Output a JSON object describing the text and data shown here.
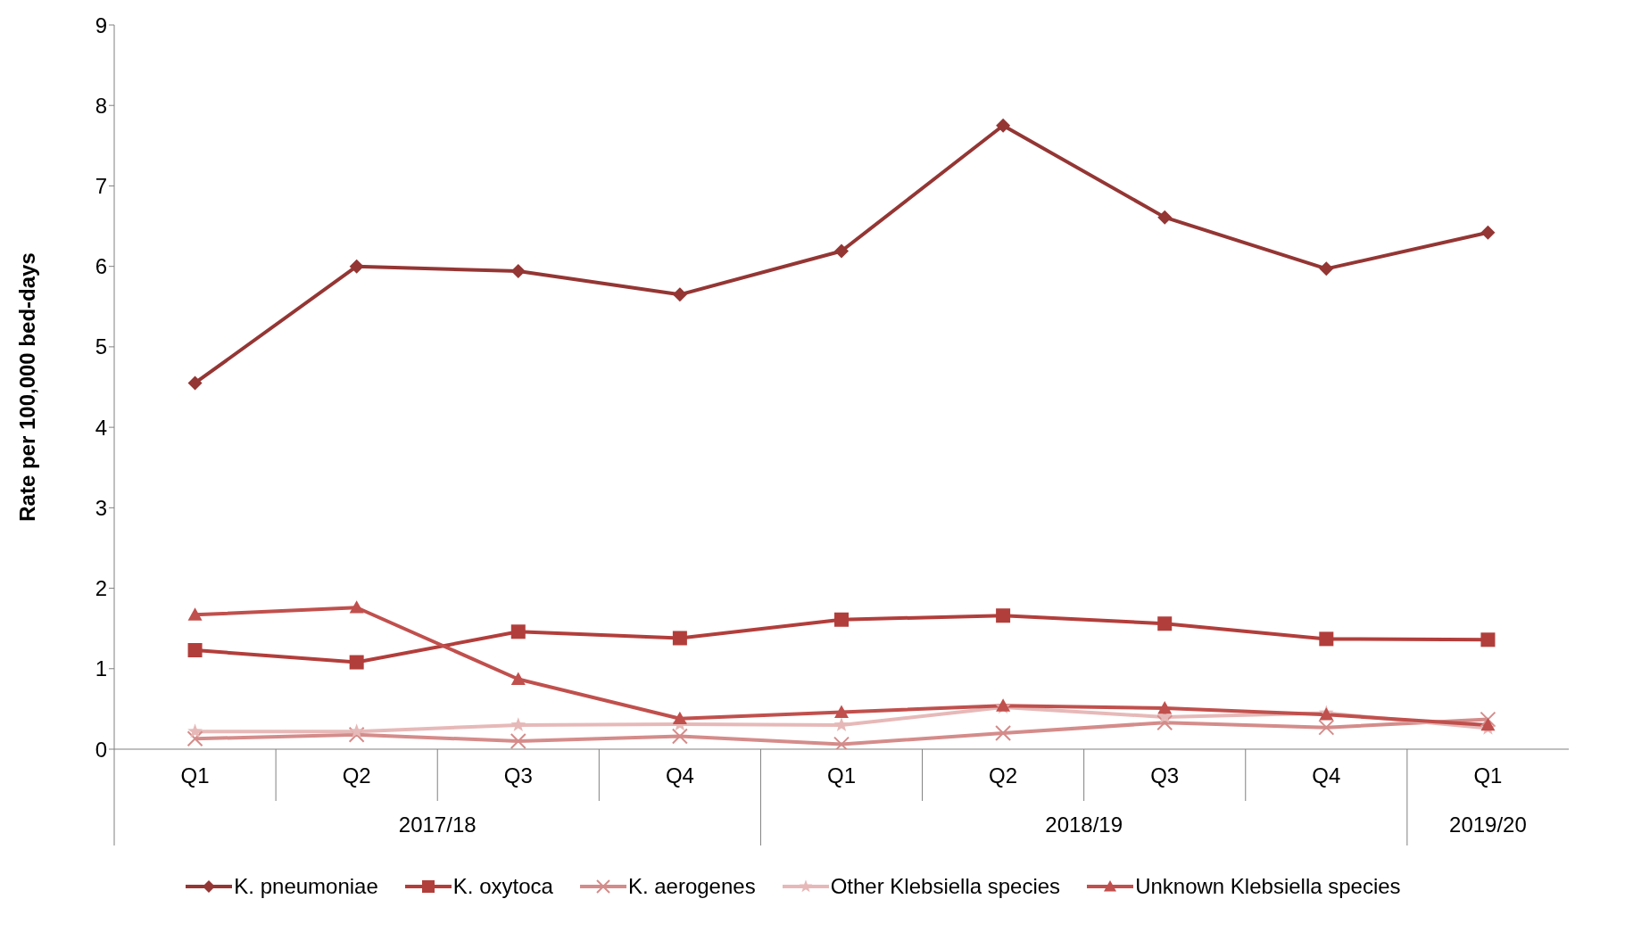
{
  "chart_data": {
    "type": "line",
    "ylabel": "Rate per 100,000 bed-days",
    "categories": [
      "Q1",
      "Q2",
      "Q3",
      "Q4",
      "Q1",
      "Q2",
      "Q3",
      "Q4",
      "Q1"
    ],
    "annotations": [
      "2017/18",
      "2018/19",
      "2019/20"
    ],
    "ylim": [
      0,
      9
    ],
    "yticks": [
      0,
      1,
      2,
      3,
      4,
      5,
      6,
      7,
      8,
      9
    ],
    "grid": false,
    "legend": "bottom",
    "line_style": "solid",
    "series": [
      {
        "name": "K. pneumoniae",
        "color": "#943634",
        "marker": "diamond",
        "values": [
          4.55,
          6.0,
          5.94,
          5.65,
          6.19,
          7.75,
          6.61,
          5.97,
          6.42
        ]
      },
      {
        "name": "K. oxytoca",
        "color": "#b23e3b",
        "marker": "square",
        "values": [
          1.23,
          1.08,
          1.46,
          1.38,
          1.61,
          1.66,
          1.56,
          1.37,
          1.36
        ]
      },
      {
        "name": "K. aerogenes",
        "color": "#d48c8a",
        "marker": "cross",
        "values": [
          0.13,
          0.18,
          0.1,
          0.16,
          0.06,
          0.2,
          0.33,
          0.27,
          0.37
        ]
      },
      {
        "name": "Other Klebsiella species",
        "color": "#e6b9b8",
        "marker": "star",
        "values": [
          0.22,
          0.22,
          0.3,
          0.31,
          0.3,
          0.52,
          0.4,
          0.45,
          0.26
        ]
      },
      {
        "name": "Unknown Klebsiella species",
        "color": "#c0504d",
        "marker": "triangle",
        "values": [
          1.67,
          1.76,
          0.87,
          0.38,
          0.46,
          0.54,
          0.51,
          0.43,
          0.3
        ]
      }
    ]
  }
}
